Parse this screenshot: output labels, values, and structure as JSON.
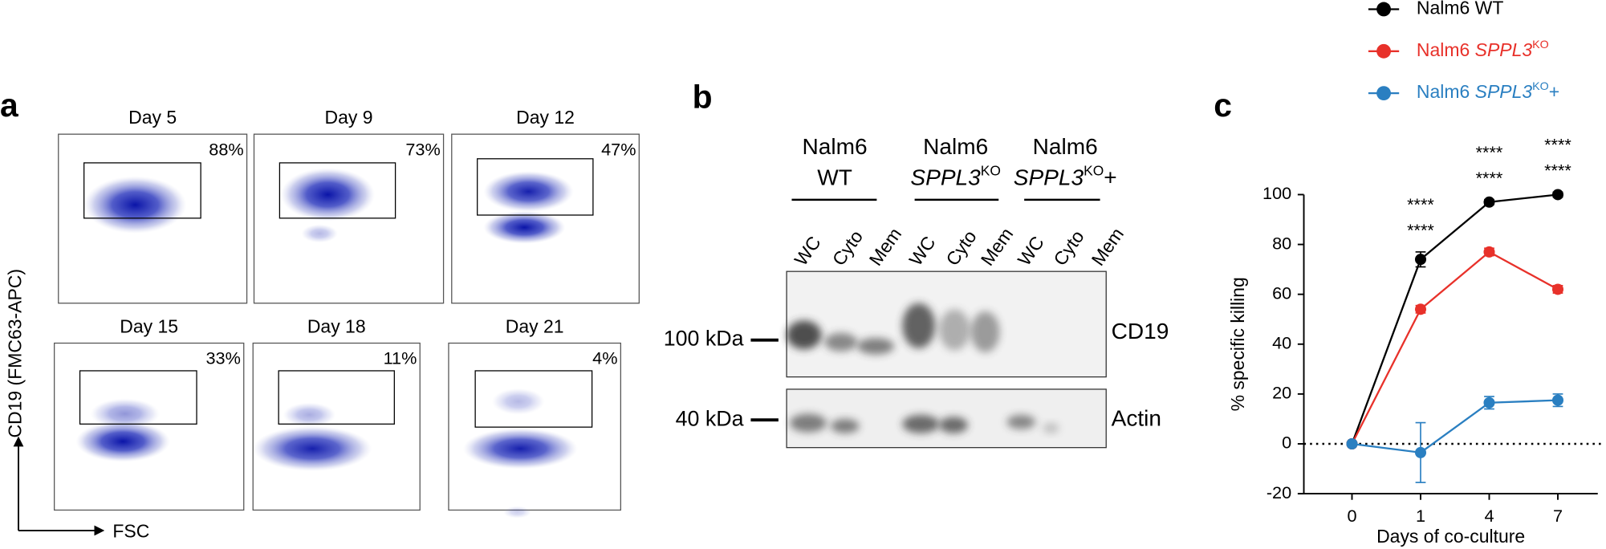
{
  "panel_a": {
    "label": "a",
    "y_axis_label": "CD19 (FMC63-APC)",
    "x_axis_label": "FSC",
    "plots": [
      {
        "title": "Day 5",
        "percent": "88%"
      },
      {
        "title": "Day 9",
        "percent": "73%"
      },
      {
        "title": "Day 12",
        "percent": "47%"
      },
      {
        "title": "Day 15",
        "percent": "33%"
      },
      {
        "title": "Day 18",
        "percent": "11%"
      },
      {
        "title": "Day 21",
        "percent": "4%"
      }
    ]
  },
  "panel_b": {
    "label": "b",
    "groups": [
      {
        "lines": [
          [
            {
              "text": "Nalm6"
            }
          ],
          [
            {
              "text": "WT"
            }
          ]
        ],
        "lanes": [
          "WC",
          "Cyto",
          "Mem"
        ]
      },
      {
        "lines": [
          [
            {
              "text": "Nalm6"
            }
          ],
          [
            {
              "text": "SPPL3",
              "style": "italic"
            },
            {
              "text": "KO",
              "style": "sup"
            }
          ]
        ],
        "lanes": [
          "WC",
          "Cyto",
          "Mem"
        ]
      },
      {
        "lines": [
          [
            {
              "text": "Nalm6"
            }
          ],
          [
            {
              "text": "SPPL3",
              "style": "italic"
            },
            {
              "text": "KO",
              "style": "sup"
            },
            {
              "text": "+"
            }
          ]
        ],
        "lanes": [
          "WC",
          "Cyto",
          "Mem"
        ]
      }
    ],
    "markers": [
      "100 kDa",
      "40 kDa"
    ],
    "bands": [
      "CD19",
      "Actin"
    ]
  },
  "chart_data": {
    "type": "line",
    "label": "c",
    "x_label": "Days of co-culture",
    "y_label": "% specific killing",
    "categories": [
      0,
      1,
      4,
      7
    ],
    "ylim": [
      -20,
      100
    ],
    "yticks": [
      -20,
      0,
      20,
      40,
      60,
      80,
      100
    ],
    "zero_line": true,
    "series": [
      {
        "name": [
          {
            "text": "Nalm6 WT"
          }
        ],
        "color": "#000000",
        "values": [
          0,
          74,
          97,
          100
        ],
        "errors": [
          0,
          3,
          1,
          1
        ]
      },
      {
        "name": [
          {
            "text": "Nalm6 "
          },
          {
            "text": "SPPL3",
            "style": "italic"
          },
          {
            "text": "KO",
            "style": "sup"
          }
        ],
        "color": "#e8312a",
        "values": [
          0,
          54,
          77,
          62
        ],
        "errors": [
          0,
          1.5,
          1.5,
          1.5
        ]
      },
      {
        "name": [
          {
            "text": "Nalm6 "
          },
          {
            "text": "SPPL3",
            "style": "italic"
          },
          {
            "text": "KO",
            "style": "sup"
          },
          {
            "text": "+"
          }
        ],
        "color": "#2a7fc1",
        "values": [
          0,
          -3.5,
          16.5,
          17.5
        ],
        "errors": [
          0,
          12,
          2.5,
          2.5
        ]
      }
    ],
    "annotations": [
      {
        "x": 1,
        "labels": [
          "****",
          "****"
        ]
      },
      {
        "x": 4,
        "labels": [
          "****",
          "****"
        ]
      },
      {
        "x": 7,
        "labels": [
          "****",
          "****"
        ]
      }
    ]
  }
}
